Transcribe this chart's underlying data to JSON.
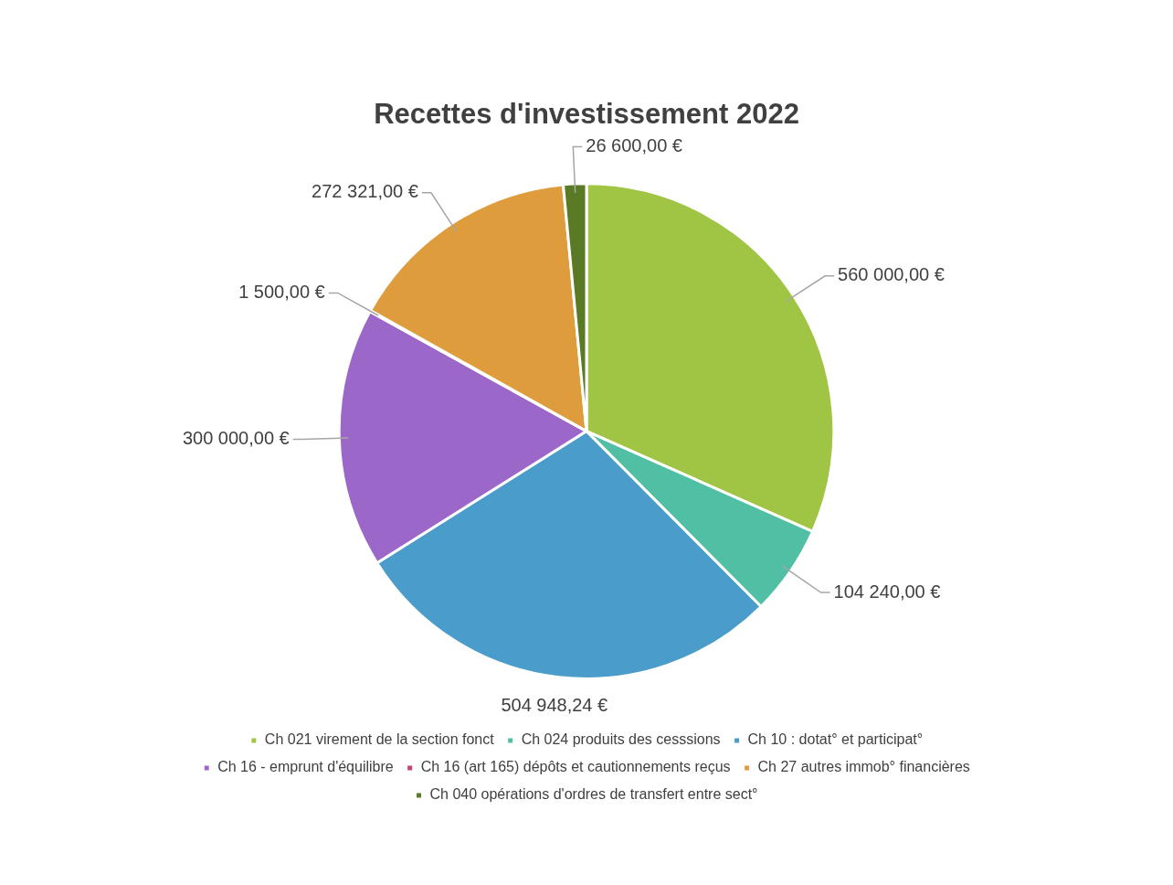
{
  "chart_data": {
    "type": "pie",
    "title": "Recettes d'investissement 2022",
    "categories": [
      "Ch 021 virement de la section fonct",
      "Ch 024 produits des cesssions",
      "Ch 10 : dotat° et participat°",
      "Ch 16 - emprunt d'équilibre",
      "Ch 16 (art 165) dépôts et cautionnements reçus",
      "Ch 27 autres immob° financières",
      "Ch 040 opérations d'ordres de transfert entre sect°"
    ],
    "values": [
      560000,
      104240,
      504948.24,
      300000,
      1500,
      272321,
      26600
    ],
    "value_labels": [
      "560 000,00 €",
      "104 240,00 €",
      "504 948,24 €",
      "300 000,00 €",
      "1 500,00 €",
      "272 321,00 €",
      "26 600,00 €"
    ],
    "colors": [
      "#a0c544",
      "#50bfa3",
      "#4a9ccb",
      "#9b67c9",
      "#c8436b",
      "#de9c3c",
      "#5b7a26"
    ],
    "legend": "bottom"
  }
}
